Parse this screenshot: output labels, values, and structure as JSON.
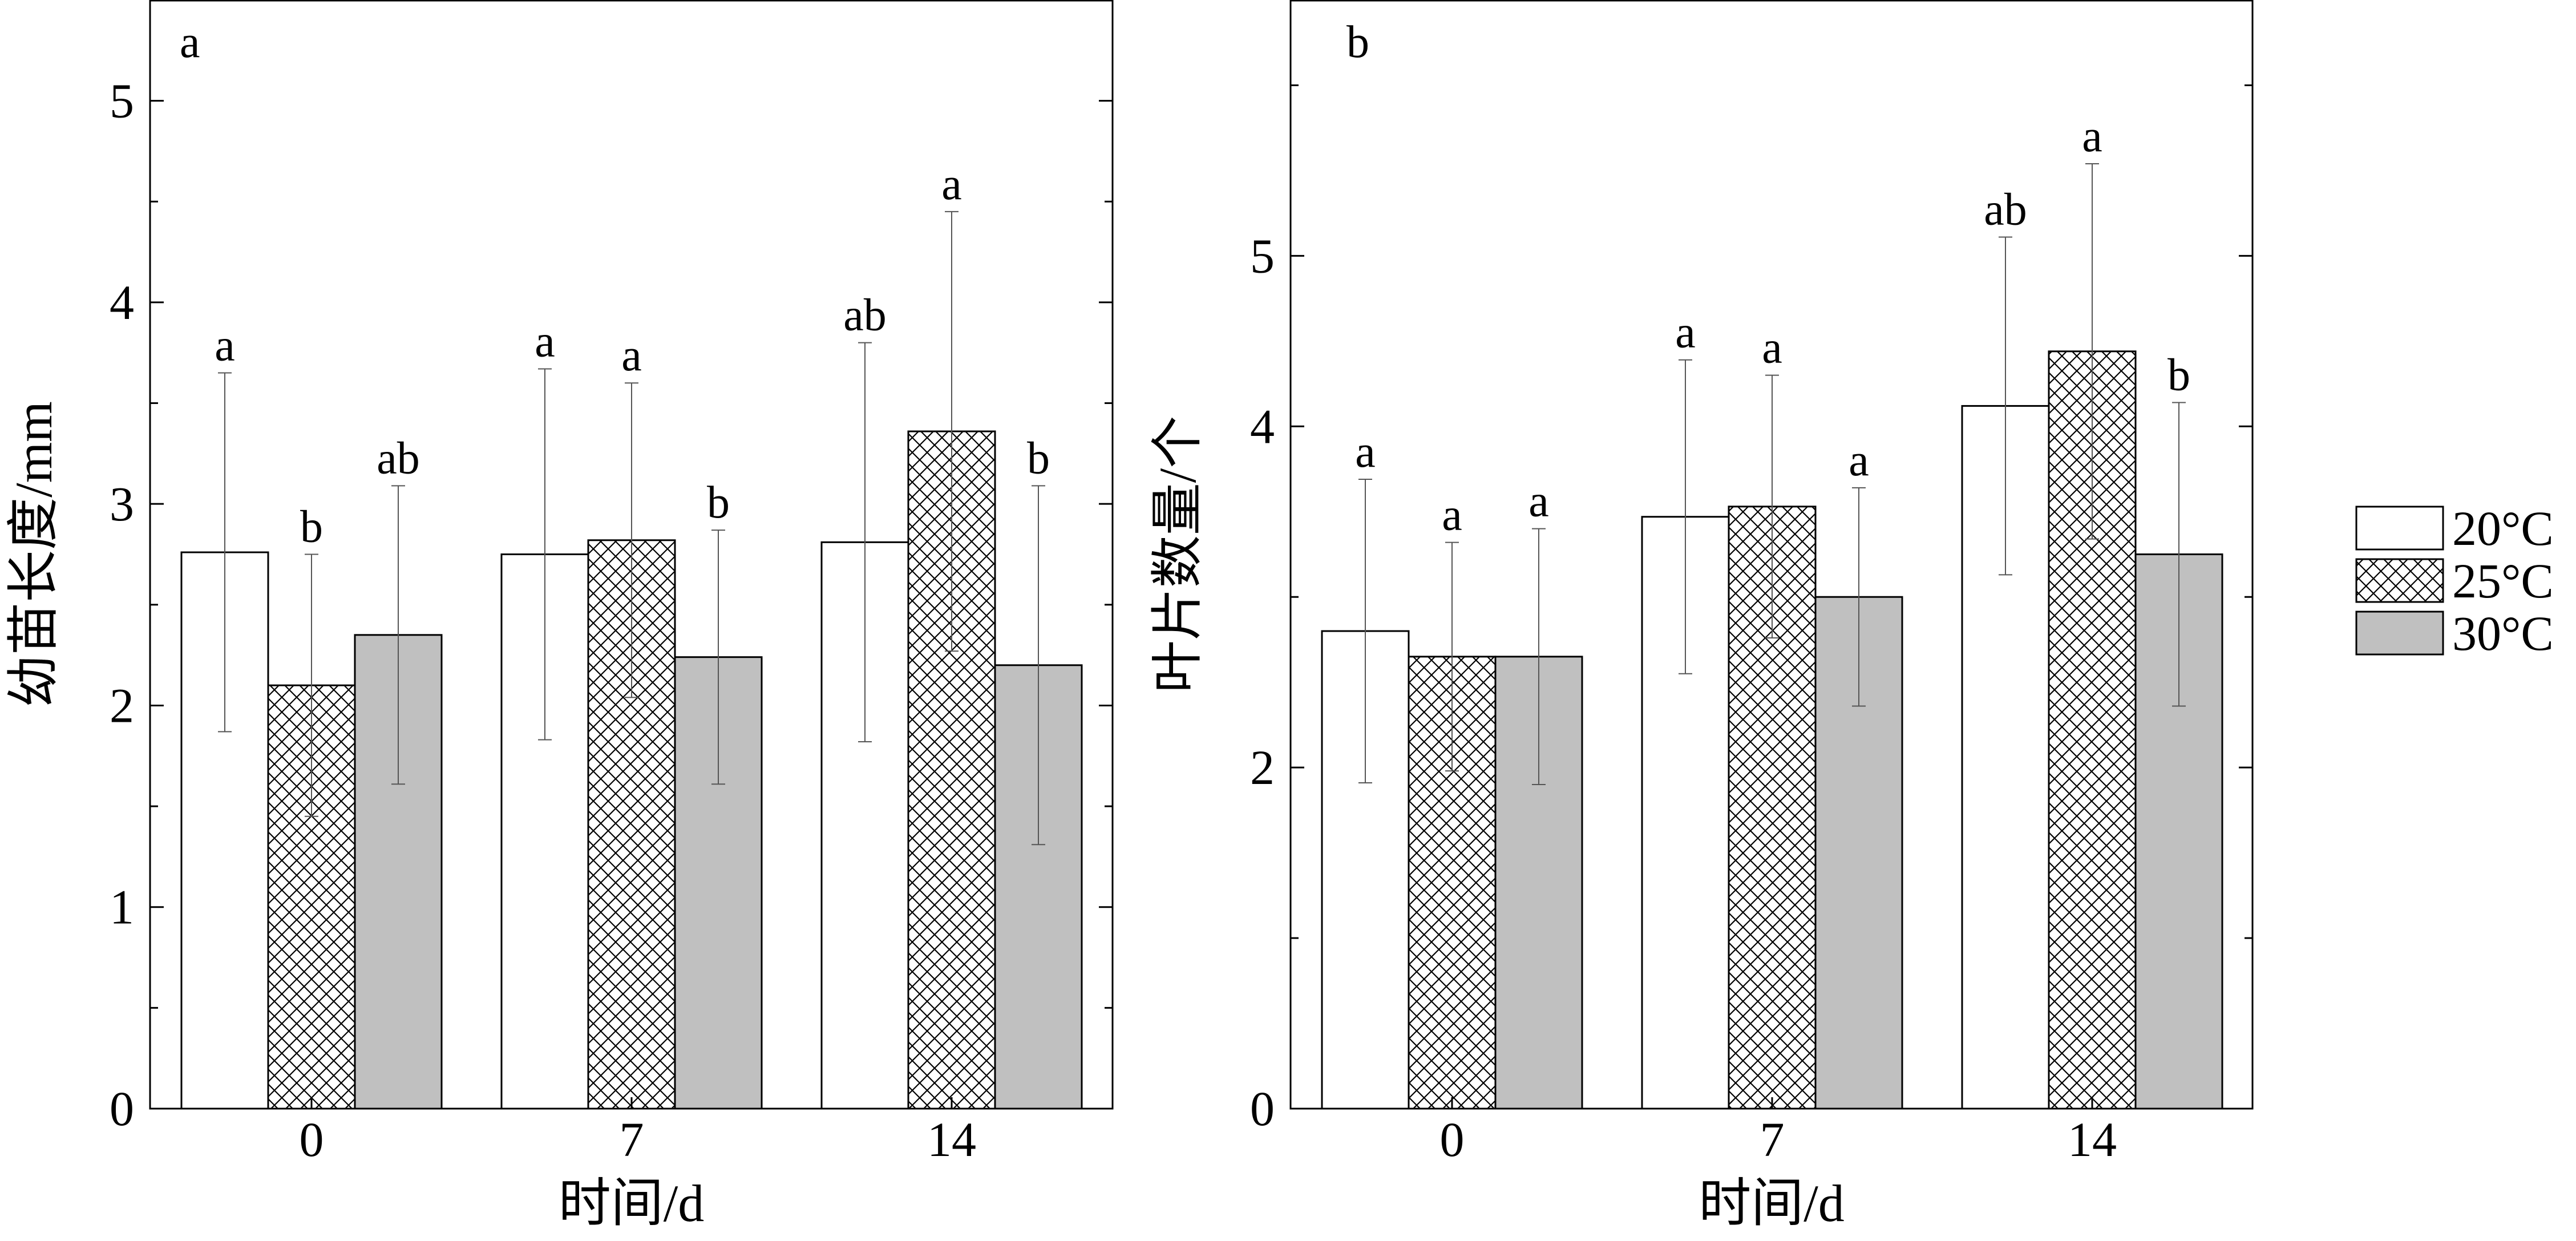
{
  "chart_data": [
    {
      "type": "bar",
      "panel_label": "a",
      "xlabel": "时间/d",
      "ylabel": "幼苗长度/mm",
      "categories": [
        "0",
        "7",
        "14"
      ],
      "ylim": [
        0,
        5.5
      ],
      "yticks": [
        0,
        1,
        2,
        3,
        4,
        5
      ],
      "series": [
        {
          "name": "20°C",
          "values": [
            2.76,
            2.75,
            2.81
          ],
          "errors": [
            0.89,
            0.92,
            0.99
          ],
          "letters": [
            "a",
            "a",
            "ab"
          ]
        },
        {
          "name": "25°C",
          "values": [
            2.1,
            2.82,
            3.36
          ],
          "errors": [
            0.65,
            0.78,
            1.09
          ],
          "letters": [
            "b",
            "a",
            "a"
          ]
        },
        {
          "name": "30°C",
          "values": [
            2.35,
            2.24,
            2.2
          ],
          "errors": [
            0.74,
            0.63,
            0.89
          ],
          "letters": [
            "ab",
            "b",
            "b"
          ]
        }
      ]
    },
    {
      "type": "bar",
      "panel_label": "b",
      "xlabel": "时间/d",
      "ylabel": "叶片数量/个",
      "categories": [
        "0",
        "7",
        "14"
      ],
      "ylim": [
        0,
        6.5
      ],
      "yticks": [
        0,
        2,
        4,
        5
      ],
      "series": [
        {
          "name": "20°C",
          "values": [
            2.8,
            3.47,
            4.12
          ],
          "errors": [
            0.89,
            0.92,
            0.99
          ],
          "letters": [
            "a",
            "a",
            "ab"
          ]
        },
        {
          "name": "25°C",
          "values": [
            2.65,
            3.53,
            4.44
          ],
          "errors": [
            0.67,
            0.77,
            1.1
          ],
          "letters": [
            "a",
            "a",
            "a"
          ]
        },
        {
          "name": "30°C",
          "values": [
            2.65,
            3.0,
            3.25
          ],
          "errors": [
            0.75,
            0.64,
            0.89
          ],
          "letters": [
            "a",
            "a",
            "b"
          ]
        }
      ]
    }
  ],
  "legend": {
    "items": [
      {
        "name": "20°C",
        "style": "white"
      },
      {
        "name": "25°C",
        "style": "crosshatch"
      },
      {
        "name": "30°C",
        "style": "gray"
      }
    ]
  },
  "colors": {
    "gray_fill": "#c0c0c0",
    "white_fill": "#ffffff",
    "stroke": "#000000"
  }
}
